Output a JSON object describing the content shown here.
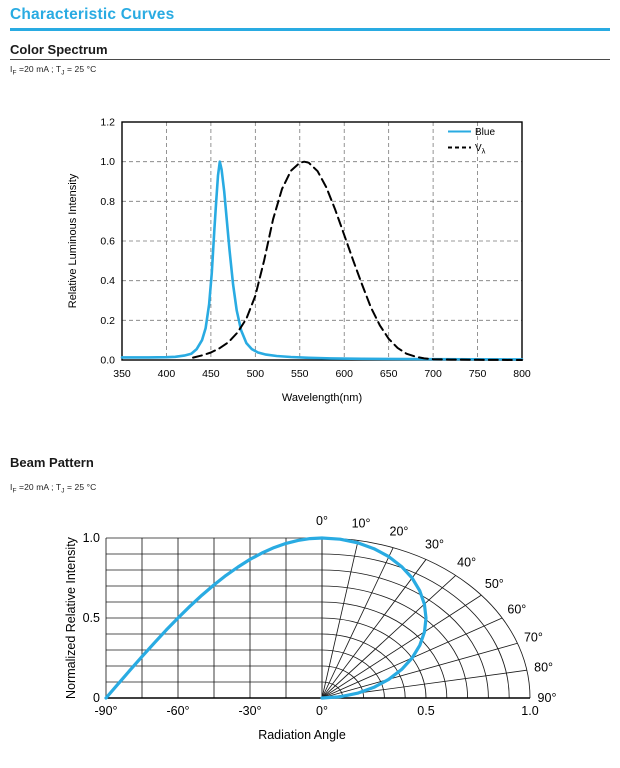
{
  "header": {
    "title": "Characteristic Curves",
    "accent_color": "#29abe2"
  },
  "color_spectrum": {
    "heading": "Color Spectrum",
    "conditions": [
      "I",
      "F",
      " =20 mA ; T",
      "J",
      " = 25 °C"
    ]
  },
  "beam_pattern": {
    "heading": "Beam Pattern",
    "conditions": [
      "I",
      "F",
      " =20 mA ; T",
      "J",
      " = 25 °C"
    ]
  },
  "chart_data": [
    {
      "id": "color-spectrum",
      "type": "line",
      "title": "Color Spectrum",
      "xlabel": "Wavelength(nm)",
      "ylabel": "Relative Luminous Intensity",
      "xlim": [
        350,
        800
      ],
      "ylim": [
        0,
        1.2
      ],
      "xticks": [
        350,
        400,
        450,
        500,
        550,
        600,
        650,
        700,
        750,
        800
      ],
      "yticks": [
        0,
        0.2,
        0.4,
        0.6,
        0.8,
        1.0,
        1.2
      ],
      "grid": "dashed",
      "legend": {
        "position": "top-right",
        "entries": [
          {
            "label": "Blue",
            "sub": "",
            "color": "#29abe2",
            "dashed": false
          },
          {
            "label": "V",
            "sub": "λ",
            "color": "#000000",
            "dashed": true
          }
        ]
      },
      "series": [
        {
          "name": "Blue",
          "color": "#29abe2",
          "dashed": false,
          "width": 2.6,
          "x": [
            350,
            380,
            400,
            410,
            420,
            428,
            434,
            440,
            444,
            448,
            451,
            454,
            456,
            458,
            460,
            462,
            465,
            468,
            471,
            475,
            479,
            484,
            490,
            496,
            503,
            512,
            524,
            540,
            560,
            585,
            620,
            700,
            800
          ],
          "y": [
            0.013,
            0.013,
            0.014,
            0.016,
            0.022,
            0.032,
            0.055,
            0.1,
            0.16,
            0.28,
            0.44,
            0.66,
            0.8,
            0.93,
            1.0,
            0.96,
            0.85,
            0.7,
            0.55,
            0.38,
            0.25,
            0.15,
            0.085,
            0.055,
            0.038,
            0.027,
            0.02,
            0.015,
            0.011,
            0.008,
            0.006,
            0.004,
            0.003
          ]
        },
        {
          "name": "Vλ",
          "color": "#000000",
          "dashed": true,
          "width": 2.0,
          "x": [
            430,
            440,
            450,
            460,
            470,
            480,
            490,
            500,
            510,
            520,
            530,
            540,
            550,
            555,
            560,
            570,
            580,
            590,
            600,
            610,
            620,
            630,
            640,
            650,
            660,
            670,
            680,
            690,
            700,
            720,
            750,
            800
          ],
          "y": [
            0.012,
            0.023,
            0.038,
            0.06,
            0.091,
            0.139,
            0.208,
            0.323,
            0.503,
            0.71,
            0.862,
            0.954,
            0.995,
            1.0,
            0.995,
            0.952,
            0.87,
            0.757,
            0.631,
            0.503,
            0.381,
            0.265,
            0.175,
            0.107,
            0.061,
            0.032,
            0.017,
            0.008,
            0.004,
            0.002,
            0.001,
            0.0
          ]
        }
      ]
    },
    {
      "id": "beam-pattern",
      "type": "line-half-cartesian-half-polar",
      "title": "Beam Pattern",
      "xlabel": "Radiation Angle",
      "ylabel": "Normalized Relative Intensity",
      "curve_color": "#29abe2",
      "intensity_range": [
        0,
        1
      ],
      "cartesian_angle_ticks": [
        {
          "value": -90,
          "label": "-90°"
        },
        {
          "value": -60,
          "label": "-60°"
        },
        {
          "value": -30,
          "label": "-30°"
        },
        {
          "value": 0,
          "label": "0°"
        }
      ],
      "radial_ticks": [
        {
          "value": 0.5,
          "label": "0.5"
        },
        {
          "value": 1.0,
          "label": "1.0"
        }
      ],
      "intensity_ticks": [
        {
          "value": 0,
          "label": "0"
        },
        {
          "value": 0.5,
          "label": "0.5"
        },
        {
          "value": 1.0,
          "label": "1.0"
        }
      ],
      "angle_labels": [
        {
          "value": 0,
          "label": "0°"
        },
        {
          "value": 10,
          "label": "10°"
        },
        {
          "value": 20,
          "label": "20°"
        },
        {
          "value": 30,
          "label": "30°"
        },
        {
          "value": 40,
          "label": "40°"
        },
        {
          "value": 50,
          "label": "50°"
        },
        {
          "value": 60,
          "label": "60°"
        },
        {
          "value": 70,
          "label": "70°"
        },
        {
          "value": 80,
          "label": "80°"
        },
        {
          "value": 90,
          "label": "90°"
        }
      ],
      "grid": {
        "angle_step_deg": 10,
        "radius_step": 0.1,
        "cartesian_angle_step_deg": 15,
        "cartesian_intensity_step": 0.1
      },
      "pattern": {
        "angles_deg": [
          0,
          5,
          10,
          15,
          20,
          25,
          30,
          35,
          40,
          45,
          50,
          55,
          60,
          65,
          70,
          75,
          80,
          85,
          90
        ],
        "intensity": [
          1.0,
          0.996,
          0.985,
          0.966,
          0.94,
          0.906,
          0.866,
          0.819,
          0.766,
          0.707,
          0.643,
          0.574,
          0.5,
          0.423,
          0.342,
          0.259,
          0.174,
          0.087,
          0.0
        ]
      }
    }
  ]
}
